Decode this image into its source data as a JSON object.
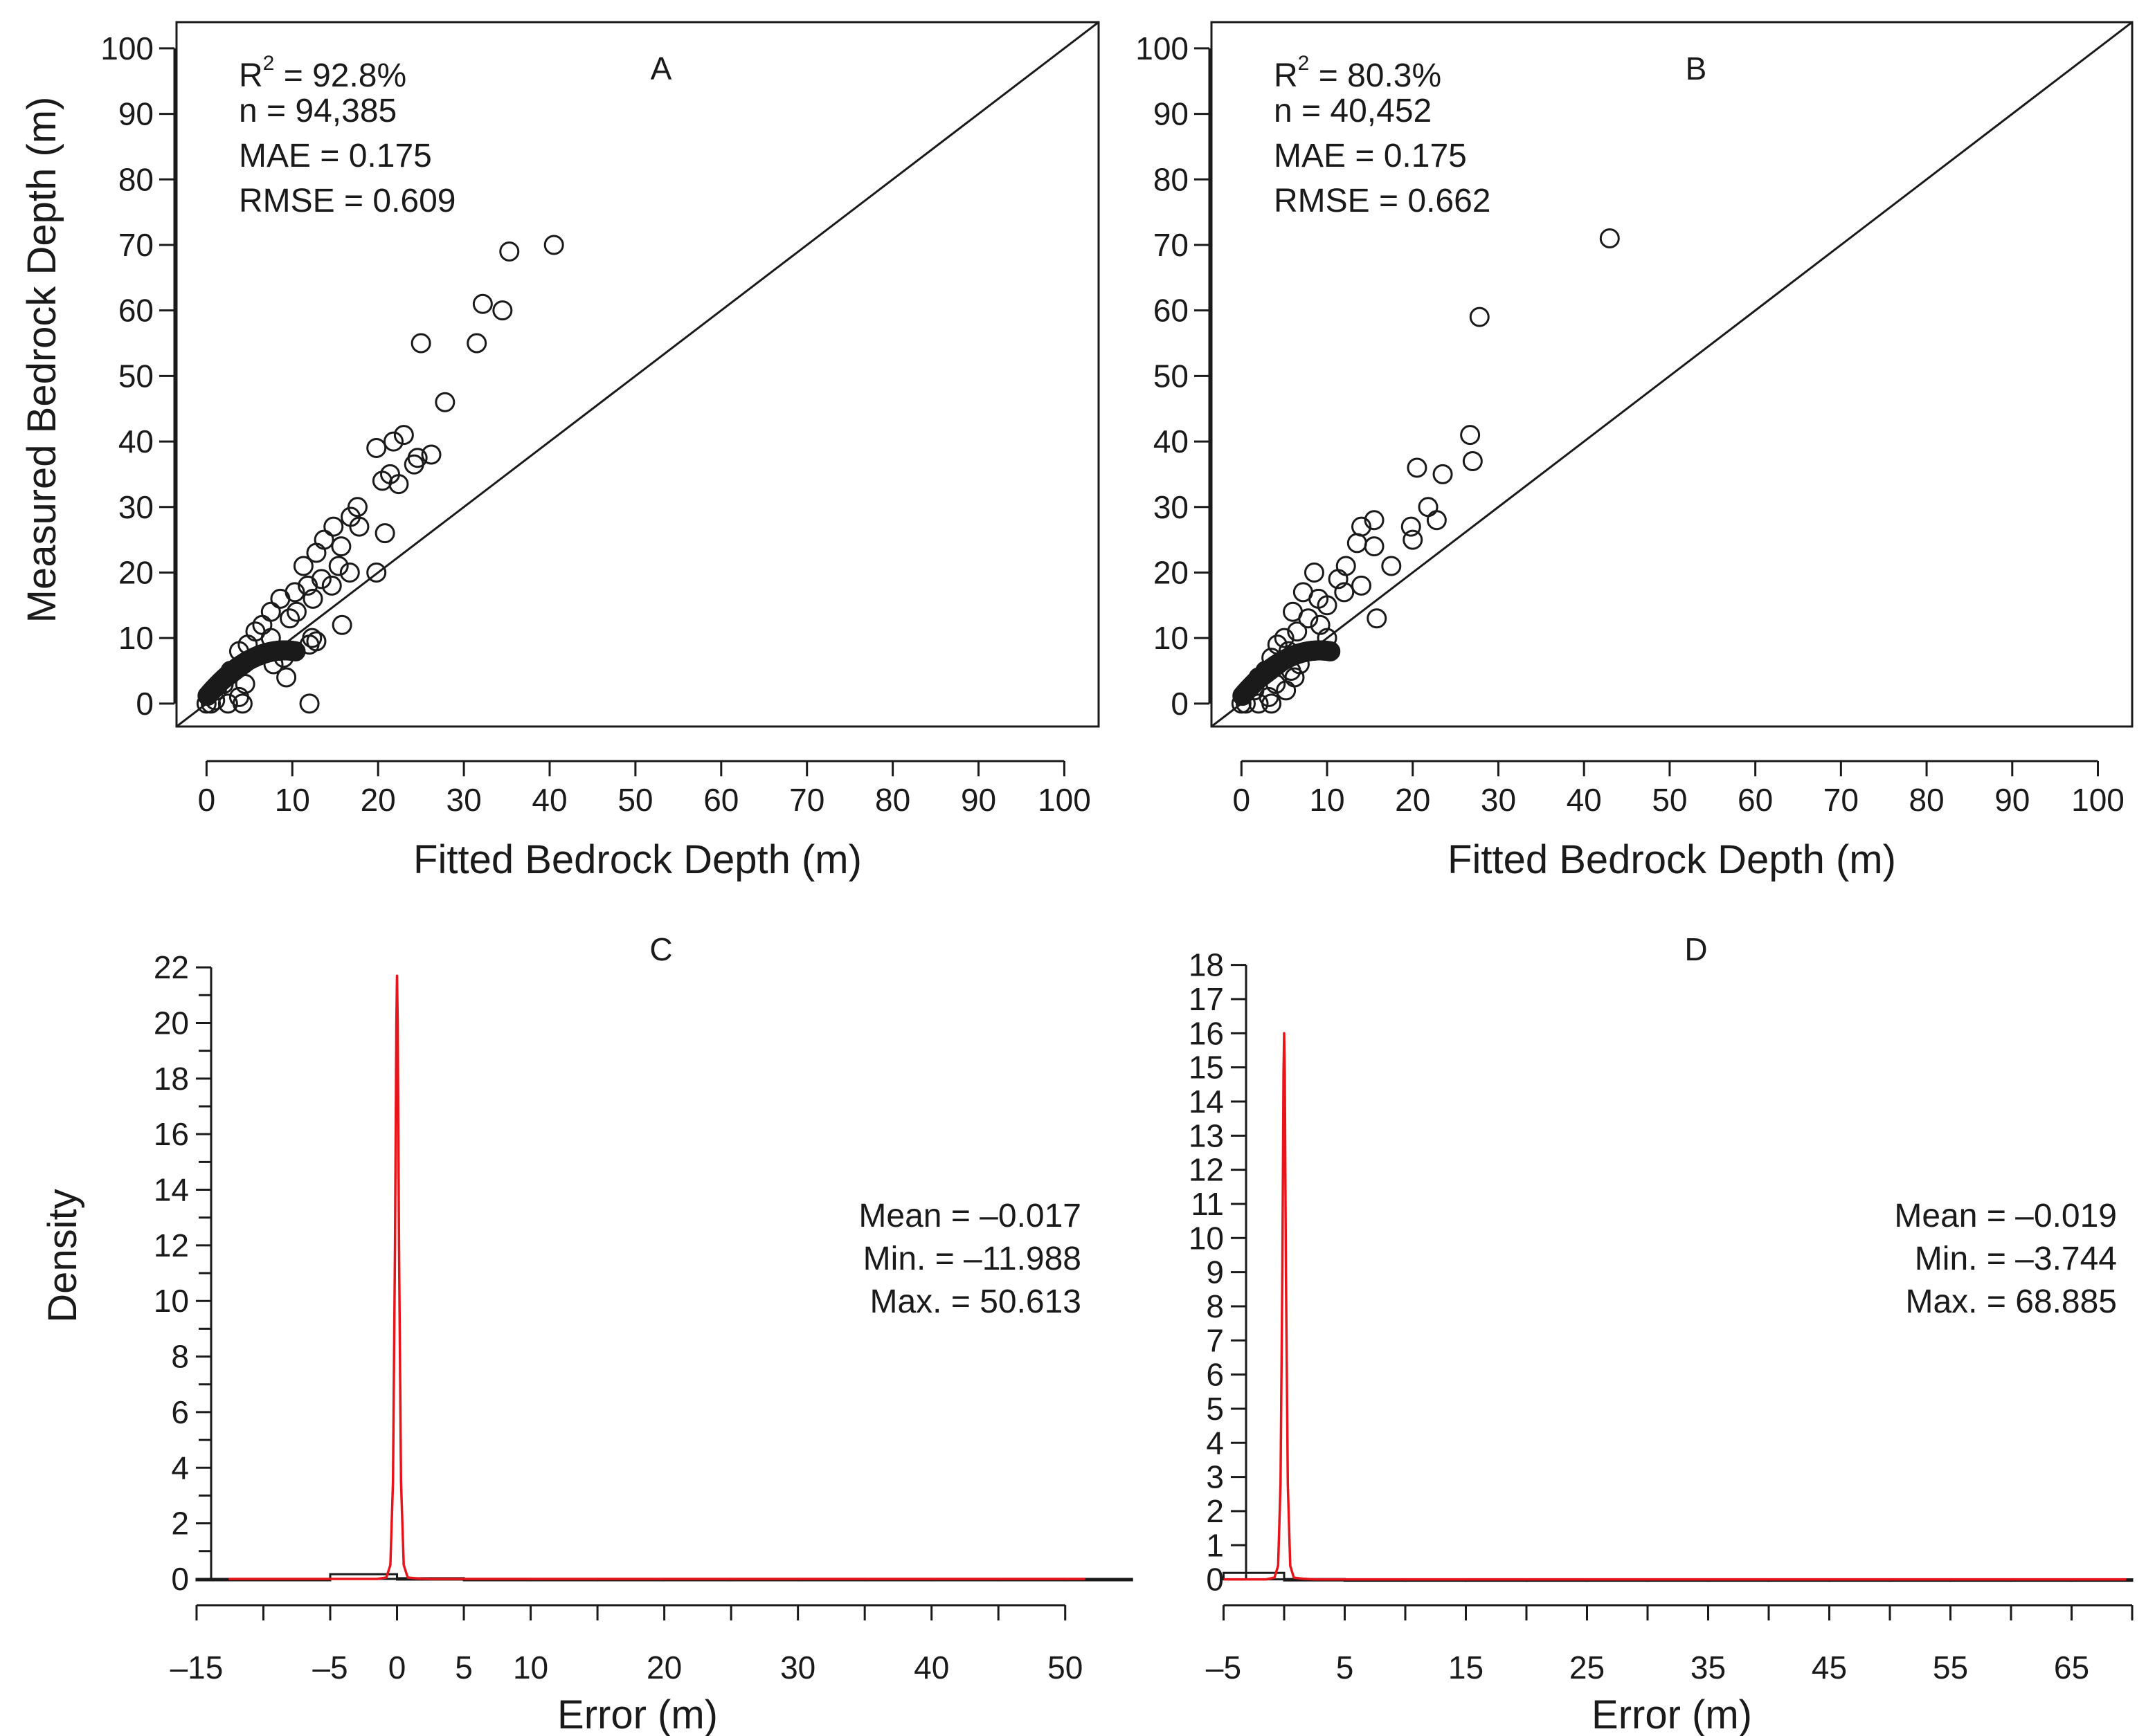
{
  "chart_data": [
    {
      "panel": "A",
      "type": "scatter",
      "title": "A",
      "xlabel": "Fitted Bedrock Depth (m)",
      "ylabel": "Measured Bedrock Depth (m)",
      "xlim": [
        -3.5,
        104
      ],
      "ylim": [
        -3.5,
        104
      ],
      "xticks": [
        0,
        10,
        20,
        30,
        40,
        50,
        60,
        70,
        80,
        90,
        100
      ],
      "yticks": [
        0,
        10,
        20,
        30,
        40,
        50,
        60,
        70,
        80,
        90,
        100
      ],
      "reference_line": "1:1 line (y = x)",
      "stats": {
        "r2_label": "R",
        "r2_sup": "2",
        "r2_value": " = 92.8%",
        "n": "n = 94,385",
        "mae": "MAE =  0.175",
        "rmse": "RMSE =  0.609"
      },
      "points": [
        [
          40.5,
          70
        ],
        [
          35.3,
          69
        ],
        [
          32.2,
          61
        ],
        [
          34.5,
          60
        ],
        [
          25.0,
          55
        ],
        [
          31.5,
          55
        ],
        [
          27.8,
          46
        ],
        [
          23.0,
          41
        ],
        [
          21.8,
          40
        ],
        [
          19.8,
          39
        ],
        [
          26.2,
          38
        ],
        [
          24.6,
          37.5
        ],
        [
          24.2,
          36.5
        ],
        [
          21.4,
          35
        ],
        [
          20.5,
          34
        ],
        [
          22.4,
          33.5
        ],
        [
          17.6,
          30
        ],
        [
          16.8,
          28.5
        ],
        [
          17.8,
          27
        ],
        [
          14.8,
          27
        ],
        [
          20.8,
          26
        ],
        [
          13.7,
          25
        ],
        [
          15.7,
          24
        ],
        [
          12.8,
          23
        ],
        [
          15.4,
          21
        ],
        [
          16.7,
          20
        ],
        [
          19.8,
          20
        ],
        [
          11.3,
          21
        ],
        [
          13.4,
          19
        ],
        [
          14.6,
          18
        ],
        [
          10.3,
          17
        ],
        [
          8.6,
          16
        ],
        [
          12.4,
          16
        ],
        [
          7.5,
          14
        ],
        [
          9.7,
          13
        ],
        [
          15.8,
          12
        ],
        [
          6.5,
          12
        ],
        [
          5.7,
          11
        ],
        [
          12.3,
          10
        ],
        [
          12.8,
          9.5
        ],
        [
          12.0,
          9
        ],
        [
          4.8,
          9
        ],
        [
          3.8,
          8
        ],
        [
          9.0,
          7
        ],
        [
          7.8,
          6
        ],
        [
          4.3,
          6
        ],
        [
          2.8,
          5
        ],
        [
          9.3,
          4
        ],
        [
          4.5,
          3
        ],
        [
          2.0,
          3
        ],
        [
          1.2,
          2
        ],
        [
          3.8,
          1
        ],
        [
          1.0,
          0.5
        ],
        [
          0.5,
          0
        ],
        [
          2.5,
          0
        ],
        [
          4.2,
          0
        ],
        [
          12.0,
          0
        ],
        [
          7.5,
          10
        ],
        [
          10.5,
          14
        ],
        [
          11.8,
          18
        ]
      ]
    },
    {
      "panel": "B",
      "type": "scatter",
      "title": "B",
      "xlabel": "Fitted Bedrock Depth (m)",
      "ylabel": "",
      "xlim": [
        -3.5,
        104
      ],
      "ylim": [
        -3.5,
        104
      ],
      "xticks": [
        0,
        10,
        20,
        30,
        40,
        50,
        60,
        70,
        80,
        90,
        100
      ],
      "yticks": [
        0,
        10,
        20,
        30,
        40,
        50,
        60,
        70,
        80,
        90,
        100
      ],
      "reference_line": "1:1 line (y = x)",
      "stats": {
        "r2_label": "R",
        "r2_sup": "2",
        "r2_value": " = 80.3%",
        "n": "n = 40,452",
        "mae": "MAE =  0.175",
        "rmse": "RMSE =  0.662"
      },
      "points": [
        [
          43.0,
          71
        ],
        [
          27.8,
          59
        ],
        [
          26.7,
          41
        ],
        [
          27.0,
          37
        ],
        [
          20.5,
          36
        ],
        [
          23.5,
          35
        ],
        [
          21.8,
          30
        ],
        [
          22.8,
          28
        ],
        [
          15.5,
          28
        ],
        [
          19.8,
          27
        ],
        [
          14.0,
          27
        ],
        [
          20.0,
          25
        ],
        [
          13.5,
          24.5
        ],
        [
          15.5,
          24
        ],
        [
          17.5,
          21
        ],
        [
          12.2,
          21
        ],
        [
          11.3,
          19
        ],
        [
          14.0,
          18
        ],
        [
          7.2,
          17
        ],
        [
          9.0,
          16
        ],
        [
          10.0,
          15
        ],
        [
          6.0,
          14
        ],
        [
          15.8,
          13
        ],
        [
          7.8,
          13
        ],
        [
          9.2,
          12
        ],
        [
          6.5,
          11
        ],
        [
          5.0,
          10
        ],
        [
          10.0,
          10
        ],
        [
          4.2,
          9
        ],
        [
          5.5,
          8
        ],
        [
          3.5,
          7
        ],
        [
          6.8,
          6
        ],
        [
          2.8,
          5
        ],
        [
          5.8,
          5
        ],
        [
          6.2,
          4
        ],
        [
          2.0,
          4
        ],
        [
          5.2,
          2
        ],
        [
          1.5,
          2
        ],
        [
          3.2,
          1
        ],
        [
          0.5,
          0
        ],
        [
          2.0,
          0
        ],
        [
          3.5,
          0
        ],
        [
          12.0,
          17
        ],
        [
          8.5,
          20
        ],
        [
          4.0,
          3
        ]
      ]
    },
    {
      "panel": "C",
      "type": "histogram_density",
      "title": "C",
      "xlabel": "Error (m)",
      "ylabel": "Density",
      "xlim": [
        -16.5,
        52.5
      ],
      "ylim": [
        -0.2,
        22.7
      ],
      "xticks": [
        -15,
        -5,
        0,
        5,
        10,
        20,
        30,
        40,
        50
      ],
      "xticks_unlabeled": [
        -10,
        15,
        25,
        35,
        45
      ],
      "yticks": [
        0,
        2,
        4,
        6,
        8,
        10,
        12,
        14,
        16,
        18,
        20,
        22
      ],
      "yticks_minor": [
        1,
        3,
        5,
        7,
        9,
        11,
        13,
        15,
        17,
        19,
        21
      ],
      "line_color": "#e8141a",
      "histogram": {
        "bin_edges": [
          -15,
          -5,
          0,
          5,
          10,
          15,
          20,
          25,
          30,
          35,
          40,
          45,
          50,
          55
        ],
        "densities": [
          0.0002,
          0.17,
          0.026,
          0.0005,
          0.0002,
          0.0001,
          0.0001,
          0.0001,
          5e-05,
          5e-05,
          5e-05,
          5e-05,
          2e-05
        ]
      },
      "density_curve": {
        "x": [
          -12.6,
          -1.5,
          -0.8,
          -0.5,
          -0.3,
          -0.15,
          -0.05,
          0.0,
          0.05,
          0.15,
          0.3,
          0.5,
          0.8,
          1.5,
          2.5,
          51.5
        ],
        "y": [
          0,
          0,
          0.05,
          0.5,
          3.5,
          12,
          20,
          21.7,
          20,
          12,
          3.5,
          0.5,
          0.05,
          0.02,
          0,
          0
        ]
      },
      "stats": {
        "mean": "Mean = –0.017",
        "min": "Min. = –11.988",
        "max": "Max. =  50.613"
      }
    },
    {
      "panel": "D",
      "type": "histogram_density",
      "title": "D",
      "xlabel": "Error (m)",
      "ylabel": "",
      "xlim": [
        -6.0,
        70.0
      ],
      "ylim": [
        -0.15,
        18.5
      ],
      "xticks": [
        -5,
        5,
        15,
        25,
        35,
        45,
        55,
        65
      ],
      "xticks_unlabeled": [
        0,
        10,
        20,
        30,
        40,
        50,
        60,
        70
      ],
      "yticks": [
        0,
        1,
        2,
        3,
        4,
        5,
        6,
        7,
        8,
        9,
        10,
        11,
        12,
        13,
        14,
        15,
        16,
        17,
        18
      ],
      "line_color": "#e8141a",
      "histogram": {
        "bin_edges": [
          -5,
          0,
          5,
          10,
          15,
          20,
          25,
          30,
          35,
          40,
          45,
          50,
          55,
          60,
          65,
          70
        ],
        "densities": [
          0.19,
          0.009,
          0.0005,
          0.0002,
          0.0001,
          0.0001,
          5e-05,
          5e-05,
          5e-05,
          5e-05,
          5e-05,
          5e-05,
          5e-05,
          5e-05,
          3e-05
        ]
      },
      "density_curve": {
        "x": [
          -5,
          -1.5,
          -0.8,
          -0.5,
          -0.3,
          -0.15,
          -0.05,
          0.0,
          0.05,
          0.15,
          0.3,
          0.5,
          0.8,
          1.5,
          2.5,
          69.5
        ],
        "y": [
          0,
          0,
          0.05,
          0.4,
          2.8,
          9,
          14.8,
          16,
          14.8,
          9,
          2.8,
          0.4,
          0.05,
          0.02,
          0,
          0
        ]
      },
      "stats": {
        "mean": "Mean = –0.019",
        "min": "Min. = –3.744",
        "max": "Max. =  68.885"
      }
    }
  ]
}
